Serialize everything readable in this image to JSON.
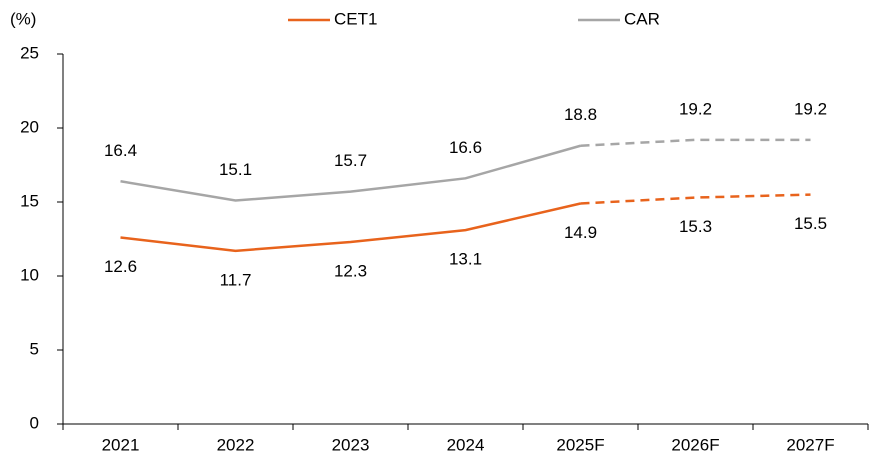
{
  "chart_data": {
    "type": "line",
    "y_axis_label": "(%)",
    "categories": [
      "2021",
      "2022",
      "2023",
      "2024",
      "2025F",
      "2026F",
      "2027F"
    ],
    "series": [
      {
        "name": "CET1",
        "color": "#e8631c",
        "values": [
          12.6,
          11.7,
          12.3,
          13.1,
          14.9,
          15.3,
          15.5
        ],
        "label_position": "below"
      },
      {
        "name": "CAR",
        "color": "#a6a6a6",
        "values": [
          16.4,
          15.1,
          15.7,
          16.6,
          18.8,
          19.2,
          19.2
        ],
        "label_position": "above"
      }
    ],
    "dashed_from_index": 4,
    "ylim": [
      0,
      25
    ],
    "yticks": [
      0,
      5,
      10,
      15,
      20,
      25
    ],
    "grid": false,
    "legend": "top"
  }
}
